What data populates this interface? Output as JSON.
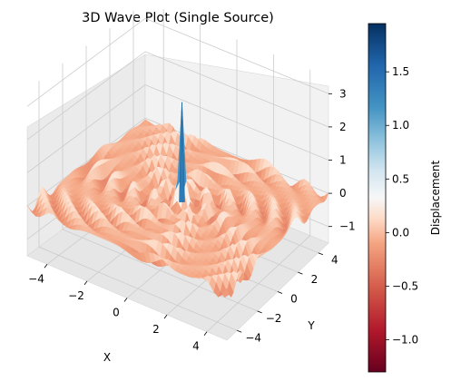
{
  "chart_data": {
    "type": "surface3d",
    "title": "3D Wave Plot (Single Source)",
    "xlabel": "X",
    "ylabel": "Y",
    "zlabel": "",
    "xlim": [
      -5,
      5
    ],
    "ylim": [
      -5,
      5
    ],
    "zlim": [
      -1.5,
      3.5
    ],
    "xticks": [
      "−4",
      "−2",
      "0",
      "2",
      "4"
    ],
    "yticks": [
      "−4",
      "−2",
      "0",
      "2",
      "4"
    ],
    "zticks": [
      "−1",
      "0",
      "1",
      "2",
      "3"
    ],
    "grid": true,
    "colormap": "RdBu",
    "colorbar": {
      "label": "Displacement",
      "range": [
        -1.3,
        1.95
      ],
      "ticks": [
        "−1.0",
        "−0.5",
        "0.0",
        "0.5",
        "1.0",
        "1.5"
      ],
      "tick_values": [
        -1.0,
        -0.5,
        0.0,
        0.5,
        1.0,
        1.5
      ]
    },
    "surface": {
      "source": [
        0,
        0
      ],
      "peak_z": 3.0,
      "ring_wavelength": 1.0,
      "amplitude_far": 0.2
    }
  },
  "colors": {
    "axis_pane": "#f2f2f2",
    "grid": "#cccccc",
    "rdbu_low": "#67001f",
    "rdbu_mid": "#f7f7f7",
    "rdbu_high": "#053061"
  }
}
